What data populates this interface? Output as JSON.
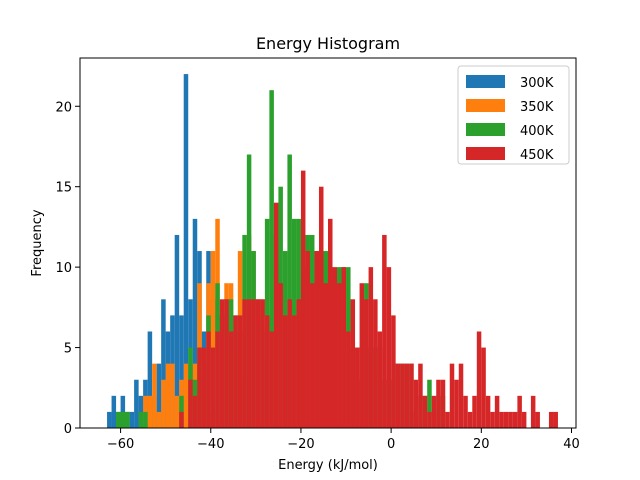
{
  "chart_data": {
    "type": "histogram",
    "title": "Energy Histogram",
    "xlabel": "Energy (kJ/mol)",
    "ylabel": "Frequency",
    "xlim": [
      -69,
      41
    ],
    "ylim": [
      0,
      23
    ],
    "xticks": [
      -60,
      -40,
      -20,
      0,
      20,
      40
    ],
    "yticks": [
      0,
      5,
      10,
      15,
      20
    ],
    "legend": "top-right",
    "series": [
      {
        "name": "300K",
        "color": "#1f77b4",
        "bins": [
          [
            -63,
            1
          ],
          [
            -62,
            2
          ],
          [
            -61,
            1
          ],
          [
            -60,
            2
          ],
          [
            -59,
            1
          ],
          [
            -58,
            1
          ],
          [
            -57,
            3
          ],
          [
            -56,
            2
          ],
          [
            -55,
            3
          ],
          [
            -54,
            6
          ],
          [
            -53,
            2
          ],
          [
            -52,
            4
          ],
          [
            -51,
            8
          ],
          [
            -50,
            6
          ],
          [
            -49,
            7
          ],
          [
            -48,
            12
          ],
          [
            -47,
            7
          ],
          [
            -46,
            22
          ],
          [
            -45,
            8
          ],
          [
            -44,
            13
          ],
          [
            -43,
            11
          ],
          [
            -42,
            6
          ],
          [
            -41,
            11
          ],
          [
            -40,
            8
          ],
          [
            -39,
            7
          ],
          [
            -38,
            7
          ],
          [
            -37,
            8
          ],
          [
            -36,
            5
          ],
          [
            -35,
            6
          ],
          [
            -34,
            3
          ]
        ]
      },
      {
        "name": "350K",
        "color": "#ff7f0e",
        "bins": [
          [
            -55,
            2
          ],
          [
            -54,
            2
          ],
          [
            -53,
            4
          ],
          [
            -52,
            1
          ],
          [
            -51,
            3
          ],
          [
            -50,
            4
          ],
          [
            -49,
            4
          ],
          [
            -48,
            2
          ],
          [
            -47,
            3
          ],
          [
            -46,
            4
          ],
          [
            -45,
            3
          ],
          [
            -44,
            4
          ],
          [
            -43,
            9
          ],
          [
            -42,
            3
          ],
          [
            -41,
            9
          ],
          [
            -40,
            11
          ],
          [
            -39,
            13
          ],
          [
            -38,
            5
          ],
          [
            -37,
            9
          ],
          [
            -36,
            9
          ],
          [
            -35,
            5
          ],
          [
            -34,
            11
          ],
          [
            -33,
            8
          ],
          [
            -32,
            12
          ],
          [
            -31,
            11
          ],
          [
            -30,
            7
          ],
          [
            -29,
            8
          ],
          [
            -28,
            4
          ],
          [
            -27,
            12
          ],
          [
            -26,
            10
          ],
          [
            -25,
            5
          ]
        ]
      },
      {
        "name": "400K",
        "color": "#2ca02c",
        "bins": [
          [
            -61,
            1
          ],
          [
            -60,
            1
          ],
          [
            -59,
            1
          ],
          [
            -56,
            1
          ],
          [
            -55,
            1
          ],
          [
            -47,
            2
          ],
          [
            -45,
            5
          ],
          [
            -44,
            3
          ],
          [
            -43,
            5
          ],
          [
            -42,
            4
          ],
          [
            -41,
            7
          ],
          [
            -40,
            1
          ],
          [
            -39,
            9
          ],
          [
            -38,
            7
          ],
          [
            -37,
            8
          ],
          [
            -36,
            8
          ],
          [
            -35,
            7
          ],
          [
            -34,
            6
          ],
          [
            -33,
            12
          ],
          [
            -32,
            17
          ],
          [
            -31,
            11
          ],
          [
            -30,
            8
          ],
          [
            -29,
            6
          ],
          [
            -28,
            13
          ],
          [
            -27,
            21
          ],
          [
            -26,
            14
          ],
          [
            -25,
            15
          ],
          [
            -24,
            11
          ],
          [
            -23,
            17
          ],
          [
            -22,
            13
          ],
          [
            -21,
            13
          ],
          [
            -20,
            10
          ],
          [
            -19,
            12
          ],
          [
            -18,
            12
          ],
          [
            -17,
            11
          ],
          [
            -16,
            11
          ],
          [
            -15,
            11
          ],
          [
            -14,
            10
          ],
          [
            -13,
            9
          ],
          [
            -12,
            10
          ],
          [
            -11,
            10
          ],
          [
            -10,
            10
          ],
          [
            -9,
            5
          ],
          [
            -8,
            5
          ],
          [
            -7,
            3
          ],
          [
            -6,
            9
          ],
          [
            -5,
            5
          ],
          [
            -4,
            5
          ],
          [
            -3,
            5
          ],
          [
            -2,
            3
          ],
          [
            -1,
            3
          ],
          [
            0,
            3
          ],
          [
            1,
            4
          ],
          [
            2,
            4
          ],
          [
            3,
            4
          ],
          [
            4,
            4
          ],
          [
            5,
            1
          ],
          [
            6,
            2
          ],
          [
            7,
            2
          ],
          [
            8,
            3
          ],
          [
            9,
            1
          ],
          [
            10,
            2
          ],
          [
            11,
            2
          ]
        ]
      },
      {
        "name": "450K",
        "color": "#d62728",
        "bins": [
          [
            -47,
            1
          ],
          [
            -45,
            3
          ],
          [
            -44,
            2
          ],
          [
            -43,
            5
          ],
          [
            -42,
            5
          ],
          [
            -41,
            6
          ],
          [
            -40,
            5
          ],
          [
            -39,
            6
          ],
          [
            -38,
            8
          ],
          [
            -37,
            8
          ],
          [
            -36,
            6
          ],
          [
            -35,
            7
          ],
          [
            -34,
            7
          ],
          [
            -33,
            8
          ],
          [
            -32,
            8
          ],
          [
            -31,
            8
          ],
          [
            -30,
            8
          ],
          [
            -29,
            8
          ],
          [
            -28,
            7
          ],
          [
            -27,
            6
          ],
          [
            -26,
            14
          ],
          [
            -25,
            9
          ],
          [
            -24,
            7
          ],
          [
            -23,
            8
          ],
          [
            -22,
            7
          ],
          [
            -21,
            8
          ],
          [
            -20,
            16
          ],
          [
            -19,
            11
          ],
          [
            -18,
            9
          ],
          [
            -17,
            11
          ],
          [
            -16,
            15
          ],
          [
            -15,
            9
          ],
          [
            -14,
            13
          ],
          [
            -13,
            10
          ],
          [
            -12,
            9
          ],
          [
            -11,
            10
          ],
          [
            -10,
            6
          ],
          [
            -9,
            8
          ],
          [
            -8,
            5
          ],
          [
            -7,
            9
          ],
          [
            -6,
            8
          ],
          [
            -5,
            10
          ],
          [
            -4,
            8
          ],
          [
            -3,
            6
          ],
          [
            -2,
            12
          ],
          [
            -1,
            10
          ],
          [
            0,
            7
          ],
          [
            1,
            4
          ],
          [
            2,
            4
          ],
          [
            3,
            4
          ],
          [
            4,
            4
          ],
          [
            5,
            3
          ],
          [
            6,
            4
          ],
          [
            7,
            2
          ],
          [
            8,
            1
          ],
          [
            9,
            2
          ],
          [
            10,
            3
          ],
          [
            11,
            3
          ],
          [
            12,
            1
          ],
          [
            13,
            4
          ],
          [
            14,
            3
          ],
          [
            15,
            4
          ],
          [
            16,
            2
          ],
          [
            17,
            1
          ],
          [
            18,
            2
          ],
          [
            19,
            6
          ],
          [
            20,
            5
          ],
          [
            21,
            2
          ],
          [
            22,
            1
          ],
          [
            23,
            2
          ],
          [
            24,
            1
          ],
          [
            25,
            1
          ],
          [
            26,
            1
          ],
          [
            27,
            1
          ],
          [
            28,
            2
          ],
          [
            29,
            1
          ],
          [
            31,
            2
          ],
          [
            32,
            1
          ],
          [
            35,
            1
          ],
          [
            36,
            1
          ]
        ]
      }
    ]
  }
}
